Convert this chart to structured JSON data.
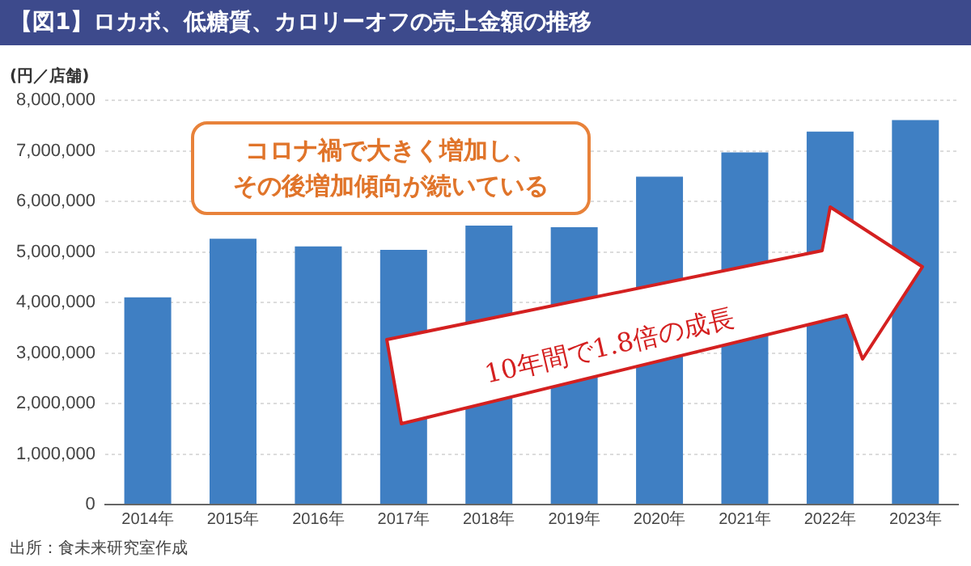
{
  "chart_data": {
    "type": "bar",
    "title": "【図1】ロカボ、低糖質、カロリーオフの売上金額の推移",
    "ylabel": "(円／店舗)",
    "categories": [
      "2014年",
      "2015年",
      "2016年",
      "2017年",
      "2018年",
      "2019年",
      "2020年",
      "2021年",
      "2022年",
      "2023年"
    ],
    "values": [
      4100000,
      5260000,
      5110000,
      5040000,
      5520000,
      5490000,
      6490000,
      6970000,
      7380000,
      7610000
    ],
    "color": "#3f7fc3",
    "ylim": [
      0,
      8000000
    ],
    "yticks": [
      0,
      {
        "value": 1000000,
        "label": "1,000,000"
      },
      {
        "value": 2000000,
        "label": "2,000,000"
      },
      {
        "value": 3000000,
        "label": "3,000,000"
      },
      {
        "value": 4000000,
        "label": "4,000,000"
      },
      {
        "value": 5000000,
        "label": "5,000,000"
      },
      {
        "value": 6000000,
        "label": "6,000,000"
      },
      {
        "value": 7000000,
        "label": "7,000,000"
      },
      {
        "value": 8000000,
        "label": "8,000,000"
      }
    ],
    "grid": "y",
    "annotations": [
      "コロナ禍で大きく増加し、",
      "その後増加傾向が続いている",
      "10年間で1.8倍の成長",
      "出所：食未来研究室作成"
    ]
  }
}
